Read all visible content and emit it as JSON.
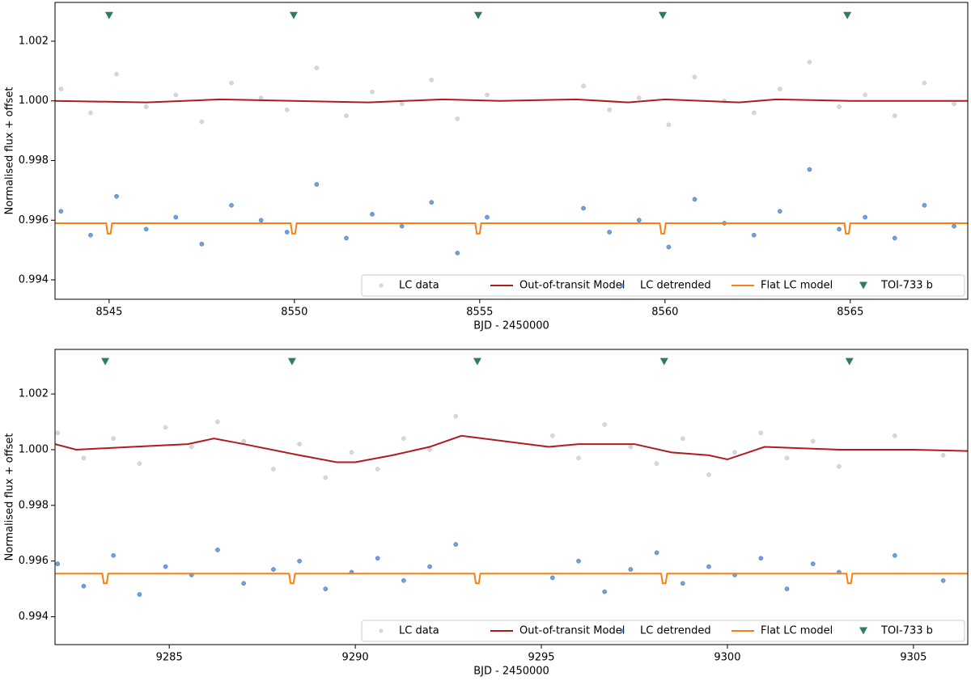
{
  "chart_data": [
    {
      "type": "scatter",
      "xlabel": "BJD - 2450000",
      "ylabel": "Normalised flux + offset",
      "xlim": [
        8543.54,
        8568.17
      ],
      "ylim": [
        0.99335,
        1.0033
      ],
      "xticks": [
        8545,
        8550,
        8555,
        8560,
        8565
      ],
      "yticks": [
        0.994,
        0.996,
        0.998,
        {
          "value": 1,
          "label": "1.000"
        },
        1.002
      ],
      "legend": "lower right",
      "series": [
        {
          "name": "LC data",
          "color": "#bdbdbd",
          "style": "points",
          "x": [
            8543.7,
            8544.5,
            8545.2,
            8546.0,
            8546.8,
            8547.5,
            8548.3,
            8549.1,
            8549.8,
            8550.6,
            8551.4,
            8552.1,
            8552.9,
            8553.7,
            8554.4,
            8555.2,
            8557.8,
            8558.5,
            8559.3,
            8560.1,
            8560.8,
            8561.6,
            8562.4,
            8563.1,
            8563.9,
            8564.7,
            8565.4,
            8566.2,
            8567.0,
            8567.8
          ],
          "values": [
            1.0004,
            0.9996,
            1.0009,
            0.9998,
            1.0002,
            0.9993,
            1.0006,
            1.0001,
            0.9997,
            1.0011,
            0.9995,
            1.0003,
            0.9999,
            1.0007,
            0.9994,
            1.0002,
            1.0005,
            0.9997,
            1.0001,
            0.9992,
            1.0008,
            1.0,
            0.9996,
            1.0004,
            1.0013,
            0.9998,
            1.0002,
            0.9995,
            1.0006,
            0.9999
          ]
        },
        {
          "name": "Out-of-transit Model",
          "color": "#b01c1c",
          "style": "line",
          "x": [
            8543.54,
            8546,
            8548,
            8550,
            8552,
            8554,
            8555.55,
            8557.6,
            8559,
            8560,
            8562,
            8563,
            8565,
            8568.17
          ],
          "values": [
            1.0,
            0.99995,
            1.00005,
            1.0,
            0.99995,
            1.00005,
            1.0,
            1.00005,
            0.99995,
            1.00005,
            0.99995,
            1.00005,
            1.0,
            1.0
          ]
        },
        {
          "name": "LC detrended",
          "color": "#1560bd",
          "style": "points",
          "x": [
            8543.7,
            8544.5,
            8545.2,
            8546.0,
            8546.8,
            8547.5,
            8548.3,
            8549.1,
            8549.8,
            8550.6,
            8551.4,
            8552.1,
            8552.9,
            8553.7,
            8554.4,
            8555.2,
            8557.8,
            8558.5,
            8559.3,
            8560.1,
            8560.8,
            8561.6,
            8562.4,
            8563.1,
            8563.9,
            8564.7,
            8565.4,
            8566.2,
            8567.0,
            8567.8
          ],
          "values": [
            0.9963,
            0.9955,
            0.9968,
            0.9957,
            0.9961,
            0.9952,
            0.9965,
            0.996,
            0.9956,
            0.9972,
            0.9954,
            0.9962,
            0.9958,
            0.9966,
            0.9949,
            0.9961,
            0.9964,
            0.9956,
            0.996,
            0.9951,
            0.9967,
            0.9959,
            0.9955,
            0.9963,
            0.9977,
            0.9957,
            0.9961,
            0.9954,
            0.9965,
            0.9958
          ]
        },
        {
          "name": "Flat LC model",
          "color": "#ff7f0e",
          "style": "line",
          "x": [
            8543.54,
            8544.92,
            8544.96,
            8545.04,
            8545.08,
            8549.9,
            8549.94,
            8550.02,
            8550.06,
            8554.88,
            8554.92,
            8555.0,
            8555.04,
            8559.86,
            8559.9,
            8559.98,
            8560.02,
            8564.84,
            8564.88,
            8564.96,
            8565.0,
            8568.17
          ],
          "values": [
            0.9959,
            0.9959,
            0.99555,
            0.99555,
            0.9959,
            0.9959,
            0.99555,
            0.99555,
            0.9959,
            0.9959,
            0.99555,
            0.99555,
            0.9959,
            0.9959,
            0.99555,
            0.99555,
            0.9959,
            0.9959,
            0.99555,
            0.99555,
            0.9959,
            0.9959
          ]
        },
        {
          "name": "TOI-733 b",
          "color": "#2e7d5b",
          "style": "triangle",
          "x": [
            8545.0,
            8549.98,
            8554.96,
            8559.94,
            8564.92
          ],
          "values": [
            1.00286,
            1.00286,
            1.00286,
            1.00286,
            1.00286
          ]
        }
      ]
    },
    {
      "type": "scatter",
      "xlabel": "BJD - 2450000",
      "ylabel": "Normalised flux + offset",
      "xlim": [
        9281.93,
        9306.46
      ],
      "ylim": [
        0.993,
        1.0036
      ],
      "xticks": [
        9285,
        9290,
        9295,
        9300,
        9305
      ],
      "yticks": [
        0.994,
        0.996,
        0.998,
        {
          "value": 1,
          "label": "1.000"
        },
        1.002
      ],
      "legend": "lower right",
      "series": [
        {
          "name": "LC data",
          "color": "#bdbdbd",
          "style": "points",
          "x": [
            9282.0,
            9282.7,
            9283.5,
            9284.2,
            9284.9,
            9285.6,
            9286.3,
            9287.0,
            9287.8,
            9288.5,
            9289.2,
            9289.9,
            9290.6,
            9291.3,
            9292.0,
            9292.7,
            9295.3,
            9296.0,
            9296.7,
            9297.4,
            9298.1,
            9298.8,
            9299.5,
            9300.2,
            9300.9,
            9301.6,
            9302.3,
            9303.0,
            9304.5,
            9305.8
          ],
          "values": [
            1.0006,
            0.9997,
            1.0004,
            0.9995,
            1.0008,
            1.0001,
            1.001,
            1.0003,
            0.9993,
            1.0002,
            0.999,
            0.9999,
            0.9993,
            1.0004,
            1.0,
            1.0012,
            1.0005,
            0.9997,
            1.0009,
            1.0001,
            0.9995,
            1.0004,
            0.9991,
            0.9999,
            1.0006,
            0.9997,
            1.0003,
            0.9994,
            1.0005,
            0.9998
          ]
        },
        {
          "name": "Out-of-transit Model",
          "color": "#b01c1c",
          "style": "line",
          "x": [
            9281.93,
            9282.5,
            9284.0,
            9285.5,
            9286.2,
            9287.0,
            9288.5,
            9289.5,
            9290.0,
            9291.0,
            9292.0,
            9292.85,
            9295.2,
            9296.0,
            9297.5,
            9298.5,
            9299.5,
            9300.0,
            9301.0,
            9303.0,
            9305.0,
            9306.46
          ],
          "values": [
            1.0002,
            1.0,
            1.0001,
            1.0002,
            1.0004,
            1.0002,
            0.9998,
            0.99955,
            0.99955,
            0.9998,
            1.0001,
            1.0005,
            1.0001,
            1.0002,
            1.0002,
            0.9999,
            0.9998,
            0.99965,
            1.0001,
            1.0,
            1.0,
            0.99995
          ]
        },
        {
          "name": "LC detrended",
          "color": "#1560bd",
          "style": "points",
          "x": [
            9282.0,
            9282.7,
            9283.5,
            9284.2,
            9284.9,
            9285.6,
            9286.3,
            9287.0,
            9287.8,
            9288.5,
            9289.2,
            9289.9,
            9290.6,
            9291.3,
            9292.0,
            9292.7,
            9295.3,
            9296.0,
            9296.7,
            9297.4,
            9298.1,
            9298.8,
            9299.5,
            9300.2,
            9300.9,
            9301.6,
            9302.3,
            9303.0,
            9304.5,
            9305.8
          ],
          "values": [
            0.9959,
            0.9951,
            0.9962,
            0.9948,
            0.9958,
            0.9955,
            0.9964,
            0.9952,
            0.9957,
            0.996,
            0.995,
            0.9956,
            0.9961,
            0.9953,
            0.9958,
            0.9966,
            0.9954,
            0.996,
            0.9949,
            0.9957,
            0.9963,
            0.9952,
            0.9958,
            0.9955,
            0.9961,
            0.995,
            0.9959,
            0.9956,
            0.9962,
            0.9953
          ]
        },
        {
          "name": "Flat LC model",
          "color": "#ff7f0e",
          "style": "line",
          "x": [
            9281.93,
            9283.2,
            9283.24,
            9283.32,
            9283.36,
            9288.22,
            9288.26,
            9288.34,
            9288.38,
            9293.2,
            9293.24,
            9293.32,
            9293.36,
            9298.22,
            9298.26,
            9298.34,
            9298.38,
            9303.2,
            9303.24,
            9303.32,
            9303.36,
            9306.46
          ],
          "values": [
            0.99555,
            0.99555,
            0.9952,
            0.9952,
            0.99555,
            0.99555,
            0.9952,
            0.9952,
            0.99555,
            0.99555,
            0.9952,
            0.9952,
            0.99555,
            0.99555,
            0.9952,
            0.9952,
            0.99555,
            0.99555,
            0.9952,
            0.9952,
            0.99555,
            0.99555
          ]
        },
        {
          "name": "TOI-733 b",
          "color": "#2e7d5b",
          "style": "triangle",
          "x": [
            9283.28,
            9288.3,
            9293.28,
            9298.3,
            9303.28
          ],
          "values": [
            1.00316,
            1.00316,
            1.00316,
            1.00316,
            1.00316
          ]
        }
      ]
    }
  ]
}
